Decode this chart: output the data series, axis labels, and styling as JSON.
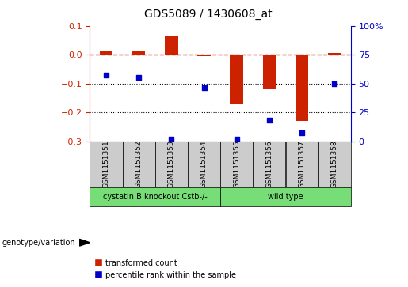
{
  "title": "GDS5089 / 1430608_at",
  "samples": [
    "GSM1151351",
    "GSM1151352",
    "GSM1151353",
    "GSM1151354",
    "GSM1151355",
    "GSM1151356",
    "GSM1151357",
    "GSM1151358"
  ],
  "red_values": [
    0.015,
    0.015,
    0.065,
    -0.005,
    -0.17,
    -0.12,
    -0.23,
    0.005
  ],
  "blue_values_pct": [
    57,
    55,
    2,
    46,
    2,
    18,
    7,
    50
  ],
  "ylim_red": [
    -0.3,
    0.1
  ],
  "ylim_blue": [
    0,
    100
  ],
  "yticks_red": [
    0.1,
    0.0,
    -0.1,
    -0.2,
    -0.3
  ],
  "yticks_blue": [
    100,
    75,
    50,
    25,
    0
  ],
  "hline_y_red": 0.0,
  "dotted_lines_red": [
    -0.1,
    -0.2
  ],
  "group1_label": "cystatin B knockout Cstb-/-",
  "group1_count": 4,
  "group2_label": "wild type",
  "group2_count": 4,
  "variation_label": "genotype/variation",
  "legend_red": "transformed count",
  "legend_blue": "percentile rank within the sample",
  "red_color": "#cc2200",
  "blue_color": "#0000cc",
  "green_color": "#77dd77",
  "gray_color": "#cccccc",
  "bar_width": 0.4,
  "background_color": "#ffffff"
}
